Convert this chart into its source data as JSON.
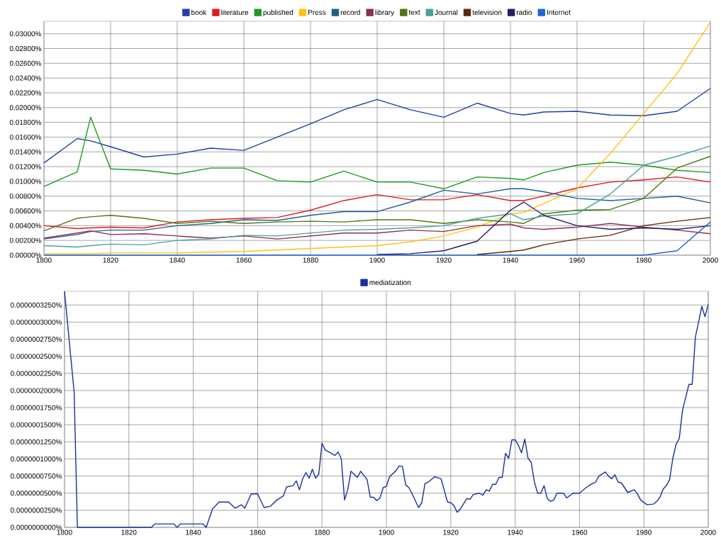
{
  "chart_data": [
    {
      "type": "line",
      "legend": "top",
      "grid": true,
      "xlim": [
        1800,
        2000
      ],
      "ylim": [
        0,
        0.0317
      ],
      "xticks": [
        1800,
        1820,
        1840,
        1860,
        1880,
        1900,
        1920,
        1940,
        1960,
        1980,
        2000
      ],
      "yticks": [
        {
          "value": 0,
          "label": "0.00000%"
        },
        {
          "value": 0.002,
          "label": "0.00200%"
        },
        {
          "value": 0.004,
          "label": "0.00400%"
        },
        {
          "value": 0.006,
          "label": "0.00600%"
        },
        {
          "value": 0.008,
          "label": "0.00800%"
        },
        {
          "value": 0.01,
          "label": "0.01000%"
        },
        {
          "value": 0.012,
          "label": "0.01200%"
        },
        {
          "value": 0.014,
          "label": "0.01400%"
        },
        {
          "value": 0.016,
          "label": "0.01600%"
        },
        {
          "value": 0.018,
          "label": "0.01800%"
        },
        {
          "value": 0.02,
          "label": "0.02000%"
        },
        {
          "value": 0.022,
          "label": "0.02200%"
        },
        {
          "value": 0.024,
          "label": "0.02400%"
        },
        {
          "value": 0.026,
          "label": "0.02600%"
        },
        {
          "value": 0.028,
          "label": "0.02800%"
        },
        {
          "value": 0.03,
          "label": "0.03000%"
        }
      ],
      "x": [
        1800,
        1810,
        1814,
        1820,
        1830,
        1840,
        1850,
        1860,
        1870,
        1880,
        1890,
        1900,
        1910,
        1920,
        1930,
        1940,
        1944,
        1950,
        1960,
        1970,
        1980,
        1990,
        2000
      ],
      "series": [
        {
          "name": "book",
          "color": "#1f3fa3",
          "values": [
            0.0125,
            0.0158,
            0.0155,
            0.0147,
            0.0133,
            0.0137,
            0.0145,
            0.0142,
            0.016,
            0.0178,
            0.0197,
            0.0211,
            0.0197,
            0.0187,
            0.0206,
            0.0192,
            0.019,
            0.0194,
            0.0195,
            0.019,
            0.0189,
            0.0195,
            0.0226
          ]
        },
        {
          "name": "literature",
          "color": "#dc1b1b",
          "values": [
            0.004,
            0.0036,
            0.0037,
            0.0038,
            0.0037,
            0.0045,
            0.0048,
            0.005,
            0.0051,
            0.0061,
            0.0074,
            0.0082,
            0.0075,
            0.0075,
            0.0082,
            0.0074,
            0.0074,
            0.008,
            0.0091,
            0.0099,
            0.0102,
            0.0106,
            0.0099
          ]
        },
        {
          "name": "published",
          "color": "#1e9a1e",
          "values": [
            0.0093,
            0.0113,
            0.0187,
            0.0117,
            0.0115,
            0.011,
            0.0118,
            0.0118,
            0.0101,
            0.0099,
            0.0114,
            0.0099,
            0.0099,
            0.009,
            0.0106,
            0.0104,
            0.0102,
            0.0112,
            0.0122,
            0.0126,
            0.0122,
            0.0115,
            0.0112
          ]
        },
        {
          "name": "Press",
          "color": "#ffc20e",
          "values": [
            0.0002,
            0.0002,
            0.0002,
            0.0003,
            0.0003,
            0.0003,
            0.0004,
            0.0005,
            0.0007,
            0.0009,
            0.0011,
            0.0013,
            0.0018,
            0.0026,
            0.0038,
            0.0056,
            0.0058,
            0.007,
            0.009,
            0.0138,
            0.0192,
            0.0246,
            0.0316
          ]
        },
        {
          "name": "record",
          "color": "#1f5f8f",
          "values": [
            0.0022,
            0.0028,
            0.0032,
            0.0034,
            0.0034,
            0.004,
            0.0043,
            0.0048,
            0.0047,
            0.0054,
            0.0059,
            0.0059,
            0.0072,
            0.0088,
            0.0083,
            0.009,
            0.009,
            0.0086,
            0.0077,
            0.0074,
            0.0077,
            0.008,
            0.0071
          ]
        },
        {
          "name": "library",
          "color": "#8c2d52",
          "values": [
            0.0023,
            0.003,
            0.0033,
            0.0028,
            0.0029,
            0.0026,
            0.0023,
            0.0026,
            0.0022,
            0.0026,
            0.003,
            0.003,
            0.0034,
            0.0032,
            0.004,
            0.0042,
            0.0037,
            0.0035,
            0.0038,
            0.0043,
            0.0038,
            0.0034,
            0.0029
          ]
        },
        {
          "name": "text",
          "color": "#4d7a10",
          "values": [
            0.0033,
            0.005,
            0.0052,
            0.0054,
            0.005,
            0.0043,
            0.0046,
            0.0043,
            0.0045,
            0.0046,
            0.0045,
            0.0048,
            0.0048,
            0.0043,
            0.0048,
            0.0045,
            0.0043,
            0.0056,
            0.0061,
            0.0062,
            0.0077,
            0.0118,
            0.0134
          ]
        },
        {
          "name": "Journal",
          "color": "#4aa0a0",
          "values": [
            0.0013,
            0.0011,
            0.0013,
            0.0015,
            0.0014,
            0.002,
            0.0022,
            0.0027,
            0.0026,
            0.003,
            0.0034,
            0.0035,
            0.0037,
            0.004,
            0.005,
            0.0056,
            0.0048,
            0.0053,
            0.0056,
            0.0083,
            0.0122,
            0.0134,
            0.0148
          ]
        },
        {
          "name": "television",
          "color": "#5c2a0a",
          "values": [
            null,
            null,
            null,
            null,
            null,
            null,
            null,
            null,
            null,
            null,
            null,
            null,
            null,
            null,
            0.0001,
            0.0005,
            0.0007,
            0.0014,
            0.0022,
            0.0027,
            0.004,
            0.0046,
            0.0051
          ]
        },
        {
          "name": "radio",
          "color": "#2a1a6a",
          "values": [
            null,
            null,
            null,
            null,
            null,
            null,
            null,
            null,
            null,
            null,
            null,
            0.0001,
            0.0002,
            0.0006,
            0.0019,
            0.0061,
            0.0072,
            0.0054,
            0.004,
            0.0035,
            0.0037,
            0.0035,
            0.004
          ]
        },
        {
          "name": "Internet",
          "color": "#2266cc",
          "values": [
            0,
            0,
            0,
            0,
            0,
            0,
            0,
            0,
            0,
            0,
            0,
            0,
            0,
            0,
            0,
            0,
            0,
            0,
            0,
            0,
            0,
            0.0006,
            0.0045
          ]
        }
      ]
    },
    {
      "type": "line",
      "legend": "top",
      "grid": true,
      "xlim": [
        1800,
        2000
      ],
      "ylim": [
        0,
        3.45e-07
      ],
      "xticks": [
        1800,
        1820,
        1840,
        1860,
        1880,
        1900,
        1920,
        1940,
        1960,
        1980,
        2000
      ],
      "yticks": [
        {
          "value": 0,
          "label": "0.0000000000%"
        },
        {
          "value": 2.5e-08,
          "label": "0.0000000250%"
        },
        {
          "value": 5e-08,
          "label": "0.0000000500%"
        },
        {
          "value": 7.5e-08,
          "label": "0.0000000750%"
        },
        {
          "value": 1e-07,
          "label": "0.0000001000%"
        },
        {
          "value": 1.25e-07,
          "label": "0.0000001250%"
        },
        {
          "value": 1.5e-07,
          "label": "0.0000001500%"
        },
        {
          "value": 1.75e-07,
          "label": "0.0000001750%"
        },
        {
          "value": 2e-07,
          "label": "0.0000002000%"
        },
        {
          "value": 2.25e-07,
          "label": "0.0000002250%"
        },
        {
          "value": 2.5e-07,
          "label": "0.0000002500%"
        },
        {
          "value": 2.75e-07,
          "label": "0.0000002750%"
        },
        {
          "value": 3e-07,
          "label": "0.0000003000%"
        },
        {
          "value": 3.25e-07,
          "label": "0.0000003250%"
        }
      ],
      "x": [
        1800,
        1803,
        1804,
        1827,
        1828,
        1834,
        1835,
        1836,
        1843,
        1844,
        1846,
        1848,
        1851,
        1853,
        1855,
        1856,
        1858,
        1860,
        1862,
        1864,
        1866,
        1868,
        1869,
        1871,
        1872,
        1873,
        1874,
        1875,
        1876,
        1877,
        1878,
        1879,
        1880,
        1881,
        1883,
        1884,
        1885,
        1886,
        1887,
        1888,
        1889,
        1891,
        1892,
        1894,
        1895,
        1896,
        1897,
        1898,
        1899,
        1900,
        1901,
        1903,
        1904,
        1905,
        1906,
        1907,
        1908,
        1910,
        1911,
        1912,
        1913,
        1914,
        1915,
        1917,
        1918,
        1919,
        1920,
        1921,
        1922,
        1923,
        1925,
        1926,
        1927,
        1929,
        1930,
        1931,
        1932,
        1933,
        1934,
        1935,
        1936,
        1937,
        1938,
        1939,
        1940,
        1941,
        1942,
        1943,
        1944,
        1945,
        1946,
        1947,
        1948,
        1949,
        1950,
        1951,
        1952,
        1953,
        1955,
        1956,
        1958,
        1960,
        1962,
        1964,
        1965,
        1966,
        1968,
        1969,
        1970,
        1971,
        1972,
        1973,
        1975,
        1977,
        1978,
        1979,
        1981,
        1983,
        1984,
        1985,
        1986,
        1987,
        1988,
        1989,
        1990,
        1991,
        1992,
        1993,
        1994,
        1995,
        1996,
        1997,
        1998,
        1999,
        2000
      ],
      "series": [
        {
          "name": "mediatization",
          "color": "#1a2f9a",
          "values": [
            3.45e-07,
            1.97e-07,
            0,
            0,
            5e-09,
            5e-09,
            0,
            5e-09,
            5e-09,
            0,
            2.7e-08,
            3.7e-08,
            3.7e-08,
            2.8e-08,
            3.3e-08,
            2.8e-08,
            4.9e-08,
            4.9e-08,
            2.9e-08,
            3.1e-08,
            4e-08,
            4.6e-08,
            5.9e-08,
            6.1e-08,
            6.8e-08,
            5.5e-08,
            7.1e-08,
            8e-08,
            7.2e-08,
            8.5e-08,
            7.2e-08,
            7.8e-08,
            1.23e-07,
            1.13e-07,
            1.08e-07,
            1.05e-07,
            1.1e-07,
            1e-07,
            4e-08,
            5.5e-08,
            8.2e-08,
            7.3e-08,
            8.2e-08,
            7e-08,
            4.4e-08,
            4.4e-08,
            3.9e-08,
            4.3e-08,
            5.8e-08,
            6e-08,
            7.4e-08,
            8.3e-08,
            9e-08,
            8.9e-08,
            6.2e-08,
            5.8e-08,
            4.9e-08,
            2.9e-08,
            3.6e-08,
            6.4e-08,
            6.6e-08,
            7e-08,
            7.4e-08,
            7.1e-08,
            5.4e-08,
            3.7e-08,
            3.6e-08,
            3.2e-08,
            2.2e-08,
            2.7e-08,
            4.2e-08,
            4.1e-08,
            4.8e-08,
            5e-08,
            4.7e-08,
            5.5e-08,
            5.3e-08,
            6.3e-08,
            6.3e-08,
            7.3e-08,
            7.3e-08,
            1.08e-07,
            1.01e-07,
            1.28e-07,
            1.28e-07,
            1.2e-07,
            1.09e-07,
            1.29e-07,
            1.01e-07,
            9.5e-08,
            6.6e-08,
            5e-08,
            5e-08,
            6.1e-08,
            4.2e-08,
            3.8e-08,
            4e-08,
            5e-08,
            5e-08,
            4.3e-08,
            5e-08,
            5e-08,
            5.8e-08,
            6.4e-08,
            6.6e-08,
            7.5e-08,
            8.1e-08,
            7.5e-08,
            7.1e-08,
            7.7e-08,
            6.6e-08,
            6.5e-08,
            5.1e-08,
            5.5e-08,
            4.9e-08,
            4e-08,
            3.3e-08,
            3.4e-08,
            3.8e-08,
            4.4e-08,
            5.6e-08,
            6.1e-08,
            7e-08,
            1.01e-07,
            1.21e-07,
            1.3e-07,
            1.71e-07,
            1.9e-07,
            2.09e-07,
            2.09e-07,
            2.78e-07,
            3e-07,
            3.23e-07,
            3.08e-07,
            3.26e-07
          ]
        }
      ]
    }
  ]
}
